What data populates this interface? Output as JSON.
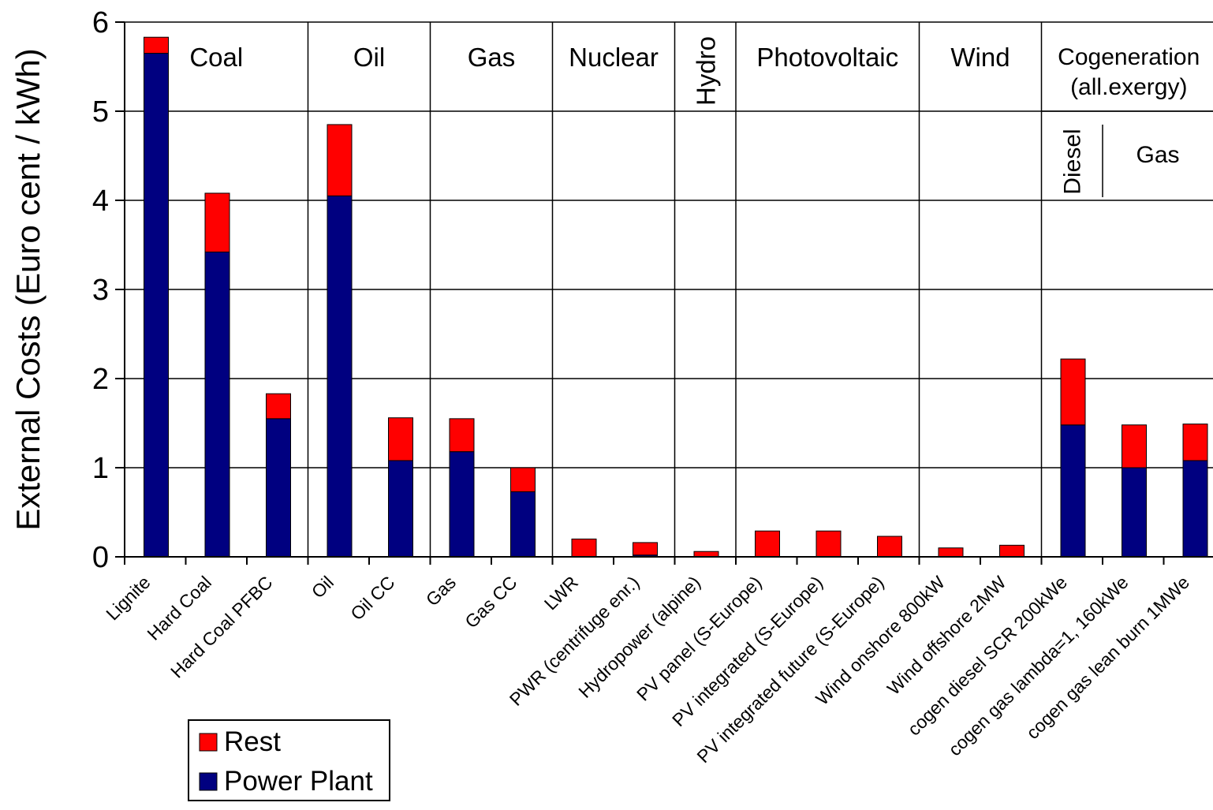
{
  "chart_data": {
    "type": "bar",
    "stacked": true,
    "ylabel": "External Costs (Euro cent / kWh)",
    "xlabel": "",
    "ylim": [
      0,
      6
    ],
    "yticks": [
      "0",
      "1",
      "2",
      "3",
      "4",
      "5",
      "6"
    ],
    "grid": true,
    "categories": [
      "Lignite",
      "Hard Coal",
      "Hard Coal PFBC",
      "Oil",
      "Oil CC",
      "Gas",
      "Gas CC",
      "LWR",
      "PWR (centrifuge enr.)",
      "Hydropower (alpine)",
      "PV panel (S-Europe)",
      "PV integrated (S-Europe)",
      "PV integrated future (S-Europe)",
      "Wind onshore 800kW",
      "Wind offshore 2MW",
      "cogen diesel SCR 200kWe",
      "cogen gas lambda=1, 160kWe",
      "cogen gas lean burn 1MWe"
    ],
    "series": [
      {
        "name": "Power Plant",
        "color": "#000080",
        "values": [
          5.65,
          3.42,
          1.55,
          4.05,
          1.08,
          1.18,
          0.73,
          0.0,
          0.02,
          0.0,
          0.0,
          0.0,
          0.0,
          0.0,
          0.0,
          1.48,
          1.0,
          1.08
        ]
      },
      {
        "name": "Rest",
        "color": "#ff0000",
        "values": [
          0.18,
          0.66,
          0.28,
          0.8,
          0.48,
          0.37,
          0.27,
          0.2,
          0.14,
          0.06,
          0.29,
          0.29,
          0.23,
          0.1,
          0.13,
          0.74,
          0.48,
          0.41
        ]
      }
    ],
    "groups": [
      {
        "label": "Coal",
        "start": 0,
        "end": 2
      },
      {
        "label": "Oil",
        "start": 3,
        "end": 4
      },
      {
        "label": "Gas",
        "start": 5,
        "end": 6
      },
      {
        "label": "Nuclear",
        "start": 7,
        "end": 8
      },
      {
        "label": "Hydro",
        "start": 9,
        "end": 9,
        "vertical": true
      },
      {
        "label": "Photovoltaic",
        "start": 10,
        "end": 12
      },
      {
        "label": "Wind",
        "start": 13,
        "end": 14
      },
      {
        "label": "Cogeneration",
        "label2": "(all.exergy)",
        "start": 15,
        "end": 17
      }
    ],
    "subgroups": [
      {
        "label": "Diesel",
        "start": 15,
        "end": 15,
        "vertical": true
      },
      {
        "label": "Gas",
        "start": 16,
        "end": 17
      }
    ],
    "legend": {
      "position": "bottom-left",
      "entries": [
        {
          "label": "Rest",
          "color": "#ff0000"
        },
        {
          "label": "Power Plant",
          "color": "#000080"
        }
      ]
    }
  }
}
